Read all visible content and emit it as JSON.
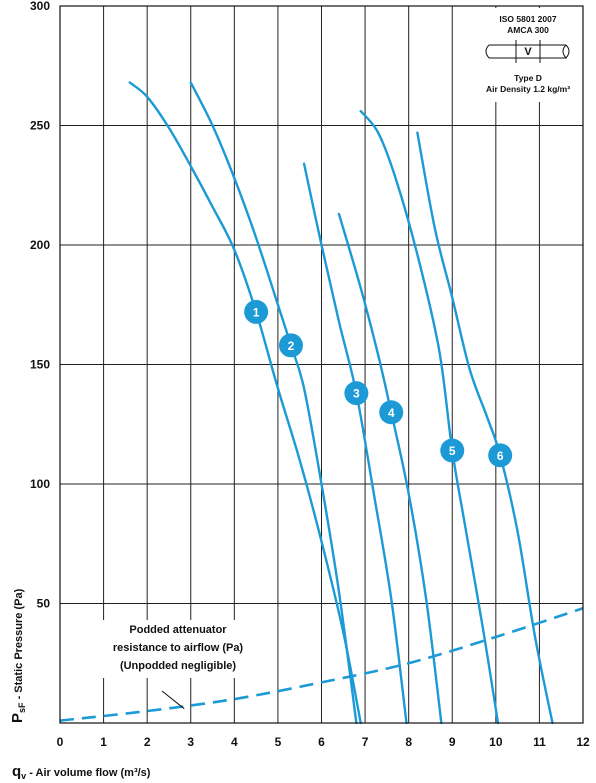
{
  "chart_data": {
    "type": "line",
    "xlabel": {
      "symbol": "q",
      "subscript": "v",
      "text": " - Air volume flow (m³/s)"
    },
    "ylabel": {
      "symbol": "P",
      "subscript": "sF",
      "text": " - Static Pressure (Pa)"
    },
    "xlim": [
      0,
      12
    ],
    "ylim": [
      0,
      300
    ],
    "xticks": [
      0,
      1,
      2,
      3,
      4,
      5,
      6,
      7,
      8,
      9,
      10,
      11,
      12
    ],
    "yticks": [
      50,
      100,
      150,
      200,
      250,
      300
    ],
    "grid": true,
    "line_color": "#1c9ad6",
    "marker_color": "#1c9ad6",
    "series": [
      {
        "name": "1",
        "label_at": [
          4.5,
          172
        ],
        "points": [
          [
            1.6,
            268
          ],
          [
            2.0,
            262
          ],
          [
            2.5,
            249
          ],
          [
            3.0,
            233
          ],
          [
            3.5,
            216
          ],
          [
            4.0,
            198
          ],
          [
            4.5,
            172
          ],
          [
            5.0,
            140
          ],
          [
            5.5,
            110
          ],
          [
            6.0,
            76
          ],
          [
            6.5,
            38
          ],
          [
            6.9,
            0
          ]
        ]
      },
      {
        "name": "2",
        "label_at": [
          5.3,
          158
        ],
        "points": [
          [
            3.0,
            268
          ],
          [
            3.5,
            250
          ],
          [
            4.0,
            228
          ],
          [
            4.5,
            203
          ],
          [
            5.0,
            175
          ],
          [
            5.3,
            158
          ],
          [
            5.6,
            140
          ],
          [
            6.0,
            100
          ],
          [
            6.4,
            55
          ],
          [
            6.8,
            0
          ]
        ]
      },
      {
        "name": "3",
        "label_at": [
          6.8,
          138
        ],
        "points": [
          [
            5.6,
            234
          ],
          [
            6.0,
            200
          ],
          [
            6.4,
            168
          ],
          [
            6.8,
            138
          ],
          [
            7.2,
            96
          ],
          [
            7.6,
            52
          ],
          [
            7.95,
            0
          ]
        ]
      },
      {
        "name": "4",
        "label_at": [
          7.6,
          130
        ],
        "points": [
          [
            6.4,
            213
          ],
          [
            6.9,
            182
          ],
          [
            7.3,
            154
          ],
          [
            7.6,
            130
          ],
          [
            8.0,
            96
          ],
          [
            8.4,
            52
          ],
          [
            8.75,
            0
          ]
        ]
      },
      {
        "name": "5",
        "label_at": [
          9.0,
          114
        ],
        "points": [
          [
            6.9,
            256
          ],
          [
            7.3,
            247
          ],
          [
            7.7,
            228
          ],
          [
            8.2,
            196
          ],
          [
            8.7,
            156
          ],
          [
            9.0,
            114
          ],
          [
            9.3,
            82
          ],
          [
            9.7,
            40
          ],
          [
            10.05,
            0
          ]
        ]
      },
      {
        "name": "6",
        "label_at": [
          10.1,
          112
        ],
        "points": [
          [
            8.2,
            247
          ],
          [
            8.6,
            207
          ],
          [
            9.0,
            178
          ],
          [
            9.4,
            148
          ],
          [
            9.8,
            128
          ],
          [
            10.1,
            112
          ],
          [
            10.5,
            80
          ],
          [
            10.9,
            36
          ],
          [
            11.3,
            0
          ]
        ]
      }
    ],
    "attenuator_curve": {
      "style": "dashed",
      "points": [
        [
          0.0,
          1
        ],
        [
          2.0,
          5
        ],
        [
          4.0,
          10
        ],
        [
          6.0,
          17
        ],
        [
          8.0,
          25
        ],
        [
          10.0,
          36
        ],
        [
          12.0,
          48
        ]
      ]
    },
    "annotation": {
      "lines": [
        "Podded attenuator",
        "resistance to airflow (Pa)",
        "(Unpodded negligible)"
      ],
      "arrow_to": [
        2.85,
        6
      ]
    },
    "legend_box": {
      "standards": [
        "ISO 5801 2007",
        "AMCA 300"
      ],
      "symbol": "V",
      "lines": [
        "Type D",
        "Air Density 1.2 kg/m³"
      ]
    }
  }
}
